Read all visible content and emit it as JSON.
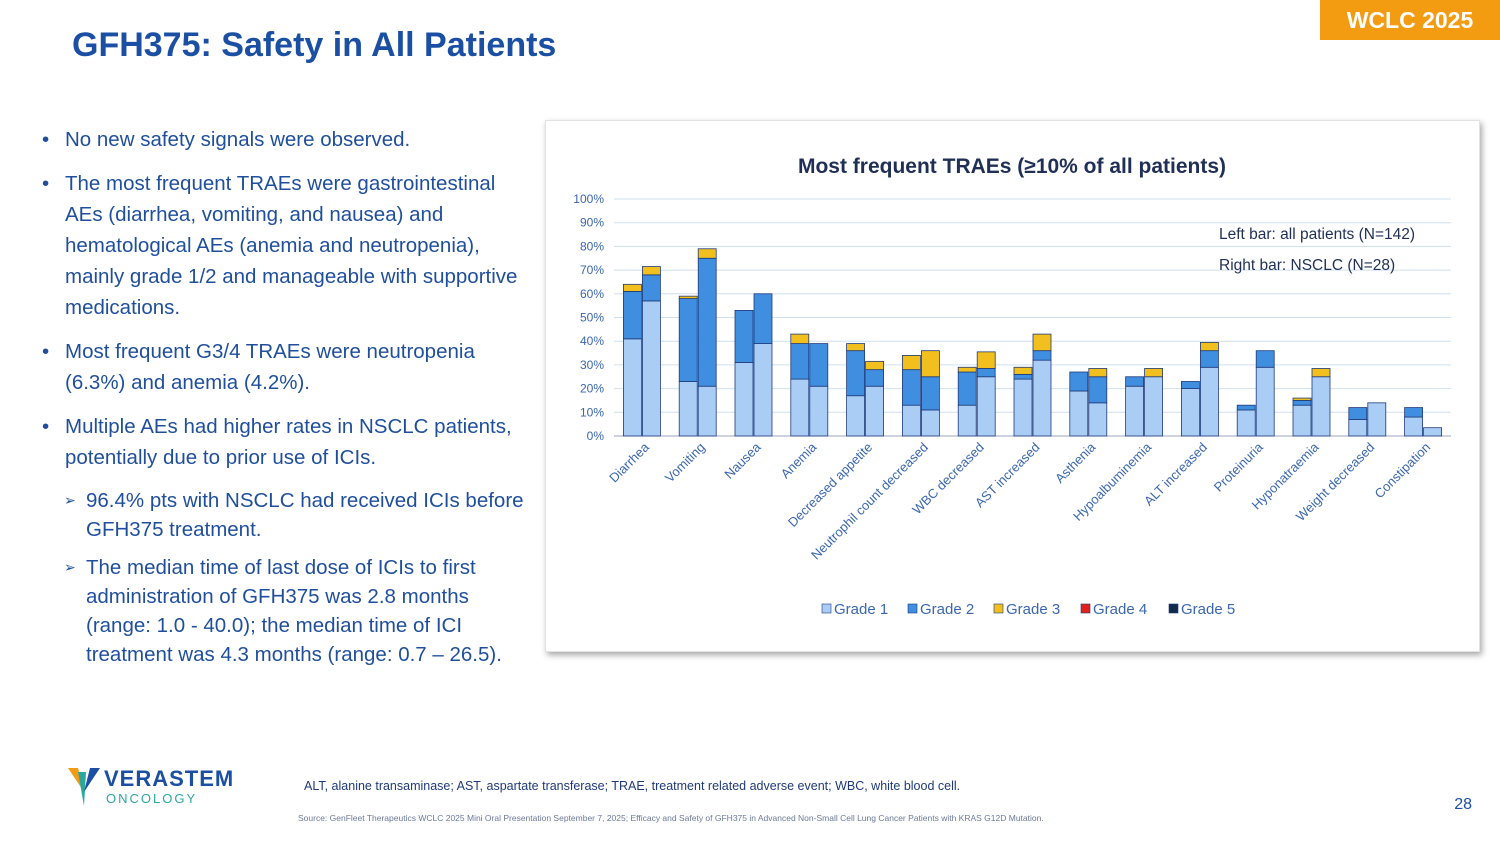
{
  "slide": {
    "title": "GFH375: Safety in All Patients",
    "badge": "WCLC 2025",
    "page_number": "28",
    "footnote": "ALT, alanine transaminase; AST, aspartate transferase; TRAE, treatment related adverse event; WBC, white blood cell.",
    "source": "Source: GenFleet Therapeutics WCLC 2025 Mini Oral Presentation September 7, 2025; Efficacy and Safety of GFH375 in Advanced Non-Small Cell Lung Cancer Patients with KRAS G12D Mutation.",
    "logo": {
      "name": "VERASTEM",
      "sub": "ONCOLOGY"
    },
    "colors": {
      "brand": "#1a4fa3",
      "accent": "#f39c12"
    }
  },
  "bullets": [
    "No new safety signals were observed.",
    "The most frequent TRAEs were gastrointestinal AEs (diarrhea, vomiting, and nausea) and hematological AEs (anemia and neutropenia), mainly grade 1/2 and manageable with supportive medications.",
    "Most frequent G3/4 TRAEs were neutropenia (6.3%) and anemia (4.2%).",
    "Multiple AEs had higher rates in NSCLC patients, potentially due to prior use of ICIs."
  ],
  "sub_bullets": [
    "96.4% pts with NSCLC had received ICIs before GFH375 treatment.",
    "The median time of last dose of ICIs to first administration of GFH375 was 2.8 months (range: 1.0 - 40.0); the median time of ICI treatment was 4.3 months (range: 0.7 – 26.5)."
  ],
  "chart_data": {
    "type": "bar",
    "stacked": true,
    "title": "Most frequent TRAEs (≥10% of all patients)",
    "annotations": [
      "Left bar: all patients (N=142)",
      "Right bar: NSCLC (N=28)"
    ],
    "categories": [
      "Diarrhea",
      "Vomiting",
      "Nausea",
      "Anemia",
      "Decreased appetite",
      "Neutrophil count decreased",
      "WBC decreased",
      "AST increased",
      "Asthenia",
      "Hypoalbuminemia",
      "ALT increased",
      "Proteinuria",
      "Hyponatraemia",
      "Weight decreased",
      "Constipation"
    ],
    "ylim": [
      0,
      100
    ],
    "yticks": [
      "0%",
      "10%",
      "20%",
      "30%",
      "40%",
      "50%",
      "60%",
      "70%",
      "80%",
      "90%",
      "100%"
    ],
    "legend": [
      "Grade 1",
      "Grade 2",
      "Grade 3",
      "Grade 4",
      "Grade 5"
    ],
    "colors": [
      "#a9cdf5",
      "#3f8ee0",
      "#f2c01e",
      "#e0201b",
      "#0f2a4a"
    ],
    "groups": [
      {
        "name": "All patients (N=142)",
        "series": [
          {
            "name": "Grade 1",
            "values": [
              41,
              23,
              31,
              24,
              17,
              13,
              13,
              24,
              19,
              21,
              20,
              11,
              13,
              7,
              8
            ]
          },
          {
            "name": "Grade 2",
            "values": [
              20,
              35,
              22,
              15,
              19,
              15,
              14,
              2,
              8,
              4,
              3,
              2,
              2,
              5,
              4
            ]
          },
          {
            "name": "Grade 3",
            "values": [
              3,
              1,
              0,
              4,
              3,
              6,
              2,
              3,
              0,
              0,
              0,
              0,
              1,
              0,
              0
            ]
          },
          {
            "name": "Grade 4",
            "values": [
              0,
              0,
              0,
              0,
              0,
              0,
              0,
              0,
              0,
              0,
              0,
              0,
              0,
              0,
              0
            ]
          },
          {
            "name": "Grade 5",
            "values": [
              0,
              0,
              0,
              0,
              0,
              0,
              0,
              0,
              0,
              0,
              0,
              0,
              0,
              0,
              0
            ]
          }
        ]
      },
      {
        "name": "NSCLC (N=28)",
        "series": [
          {
            "name": "Grade 1",
            "values": [
              57,
              21,
              39,
              21,
              21,
              11,
              25,
              32,
              14,
              25,
              29,
              29,
              25,
              14,
              3.5
            ]
          },
          {
            "name": "Grade 2",
            "values": [
              11,
              54,
              21,
              18,
              7,
              14,
              3.5,
              4,
              11,
              0,
              7,
              7,
              0,
              0,
              0
            ]
          },
          {
            "name": "Grade 3",
            "values": [
              3.5,
              4,
              0,
              0,
              3.5,
              11,
              7,
              7,
              3.5,
              3.5,
              3.5,
              0,
              3.5,
              0,
              0
            ]
          },
          {
            "name": "Grade 4",
            "values": [
              0,
              0,
              0,
              0,
              0,
              0,
              0,
              0,
              0,
              0,
              0,
              0,
              0,
              0,
              0
            ]
          },
          {
            "name": "Grade 5",
            "values": [
              0,
              0,
              0,
              0,
              0,
              0,
              0,
              0,
              0,
              0,
              0,
              0,
              0,
              0,
              0
            ]
          }
        ]
      }
    ]
  }
}
